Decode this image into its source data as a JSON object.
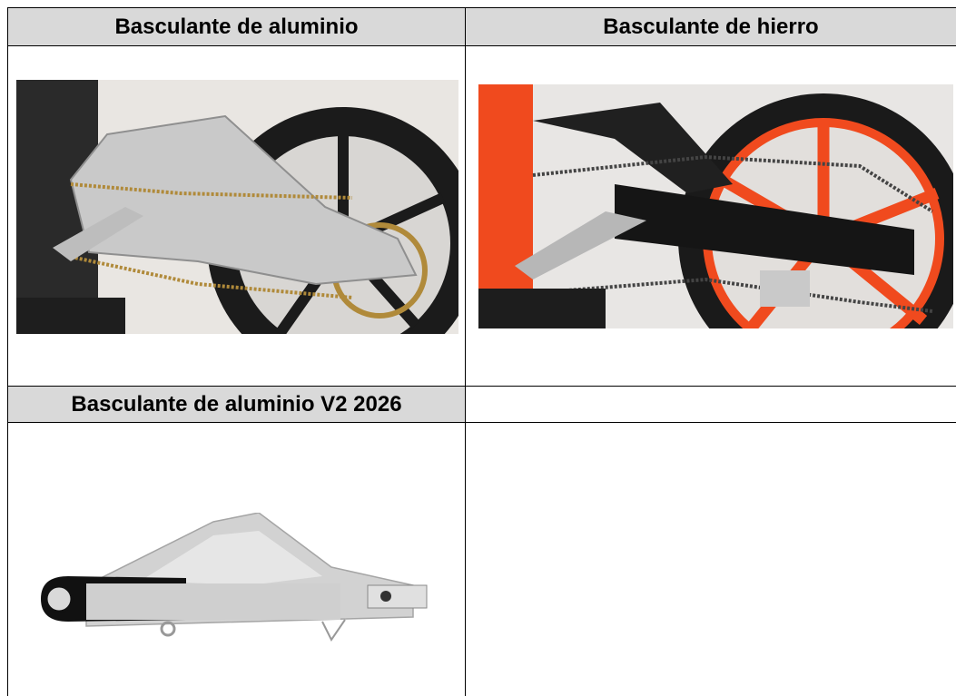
{
  "table": {
    "rows": [
      [
        "Basculante de aluminio",
        "Basculante de hierro"
      ],
      [
        "Basculante de aluminio V2 2026"
      ]
    ]
  }
}
